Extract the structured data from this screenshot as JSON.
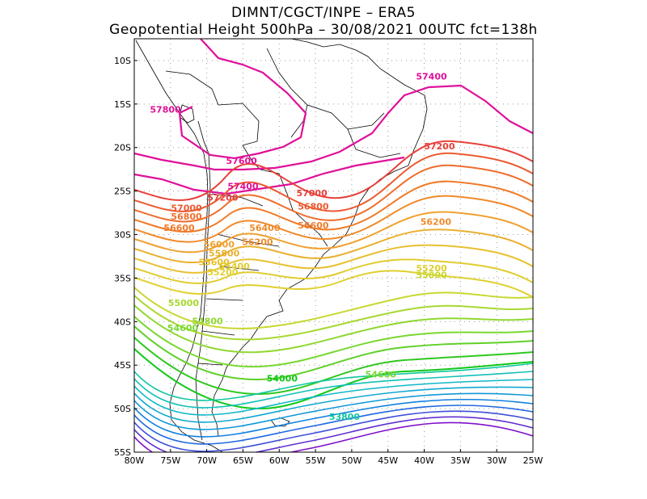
{
  "title": {
    "line1": "DIMNT/CGCT/INPE –  ERA5",
    "line2": "Geopotential Height 500hPa –  30/08/2021 00UTC fct=138h"
  },
  "axes": {
    "lon_ticks": [
      "80W",
      "75W",
      "70W",
      "65W",
      "60W",
      "55W",
      "50W",
      "45W",
      "40W",
      "35W",
      "30W",
      "25W"
    ],
    "lat_ticks": [
      "10S",
      "15S",
      "20S",
      "25S",
      "30S",
      "35S",
      "40S",
      "45S",
      "50S",
      "55S"
    ],
    "lon_range": [
      -80,
      -25
    ],
    "lat_range": [
      -55,
      -7.5
    ]
  },
  "contours": {
    "variable": "Geopotential Height 500hPa",
    "labels": [
      {
        "text": "57400",
        "lon": -39,
        "lat": -12.2,
        "color": "#e0109a"
      },
      {
        "text": "57800",
        "lon": -75.7,
        "lat": -16.0,
        "color": "#e0109a"
      },
      {
        "text": "57600",
        "lon": -65.2,
        "lat": -21.9,
        "color": "#e0109a"
      },
      {
        "text": "57400",
        "lon": -65.0,
        "lat": -24.8,
        "color": "#e0109a"
      },
      {
        "text": "57200",
        "lon": -37.9,
        "lat": -20.2,
        "color": "#e8403a"
      },
      {
        "text": "57200",
        "lon": -67.8,
        "lat": -26.1,
        "color": "#e8403a"
      },
      {
        "text": "57000",
        "lon": -55.5,
        "lat": -25.6,
        "color": "#e8403a"
      },
      {
        "text": "57000",
        "lon": -72.8,
        "lat": -27.3,
        "color": "#ec5a30"
      },
      {
        "text": "56800",
        "lon": -55.3,
        "lat": -27.1,
        "color": "#ec5a30"
      },
      {
        "text": "56800",
        "lon": -72.8,
        "lat": -28.3,
        "color": "#ef6d2c"
      },
      {
        "text": "56600",
        "lon": -73.8,
        "lat": -29.6,
        "color": "#f07a28"
      },
      {
        "text": "56600",
        "lon": -55.3,
        "lat": -29.3,
        "color": "#f07a28"
      },
      {
        "text": "56400",
        "lon": -62.0,
        "lat": -29.6,
        "color": "#f08a2a"
      },
      {
        "text": "56200",
        "lon": -38.4,
        "lat": -28.9,
        "color": "#f08a2a"
      },
      {
        "text": "56200",
        "lon": -63.0,
        "lat": -31.2,
        "color": "#f08a2a"
      },
      {
        "text": "56000",
        "lon": -68.3,
        "lat": -31.5,
        "color": "#f0a030"
      },
      {
        "text": "55800",
        "lon": -67.6,
        "lat": -32.5,
        "color": "#e8b030"
      },
      {
        "text": "55600",
        "lon": -69.0,
        "lat": -33.5,
        "color": "#e8c030"
      },
      {
        "text": "55400",
        "lon": -66.2,
        "lat": -34.0,
        "color": "#e0cc30"
      },
      {
        "text": "55200",
        "lon": -67.8,
        "lat": -34.7,
        "color": "#e0d030"
      },
      {
        "text": "55200",
        "lon": -39.0,
        "lat": -34.2,
        "color": "#dcd030"
      },
      {
        "text": "55000",
        "lon": -39.0,
        "lat": -35.0,
        "color": "#c8d830"
      },
      {
        "text": "55000",
        "lon": -73.2,
        "lat": -38.2,
        "color": "#a8d830"
      },
      {
        "text": "54800",
        "lon": -69.9,
        "lat": -40.3,
        "color": "#90d830"
      },
      {
        "text": "54600",
        "lon": -73.3,
        "lat": -41.1,
        "color": "#78d830"
      },
      {
        "text": "54600",
        "lon": -46.0,
        "lat": -46.4,
        "color": "#78d830"
      },
      {
        "text": "54000",
        "lon": -59.6,
        "lat": -46.9,
        "color": "#10c818"
      },
      {
        "text": "53800",
        "lon": -51.0,
        "lat": -51.3,
        "color": "#10c8a0"
      }
    ]
  },
  "colors": {
    "high": "#e0109a",
    "warm": "#e8403a",
    "mid": "#f0a030",
    "yellow": "#e0d030",
    "green": "#10c818",
    "teal": "#10c8a0",
    "low": "#8010c8"
  }
}
